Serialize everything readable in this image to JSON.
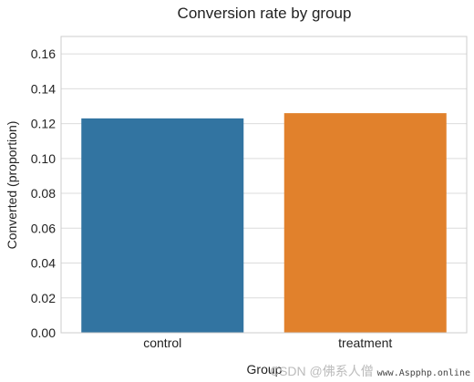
{
  "chart_data": {
    "type": "bar",
    "title": "Conversion rate by group",
    "xlabel": "Group",
    "ylabel": "Converted (proportion)",
    "categories": [
      "control",
      "treatment"
    ],
    "values": [
      0.123,
      0.126
    ],
    "ylim": [
      0,
      0.17
    ],
    "yticks": [
      "0.00",
      "0.02",
      "0.04",
      "0.06",
      "0.08",
      "0.10",
      "0.12",
      "0.14",
      "0.16"
    ],
    "grid": true,
    "colors": [
      "#3274a1",
      "#e1812c"
    ]
  },
  "watermark": {
    "text": "CSDN @佛系人僧",
    "sub": "www.Aspphp.online"
  }
}
